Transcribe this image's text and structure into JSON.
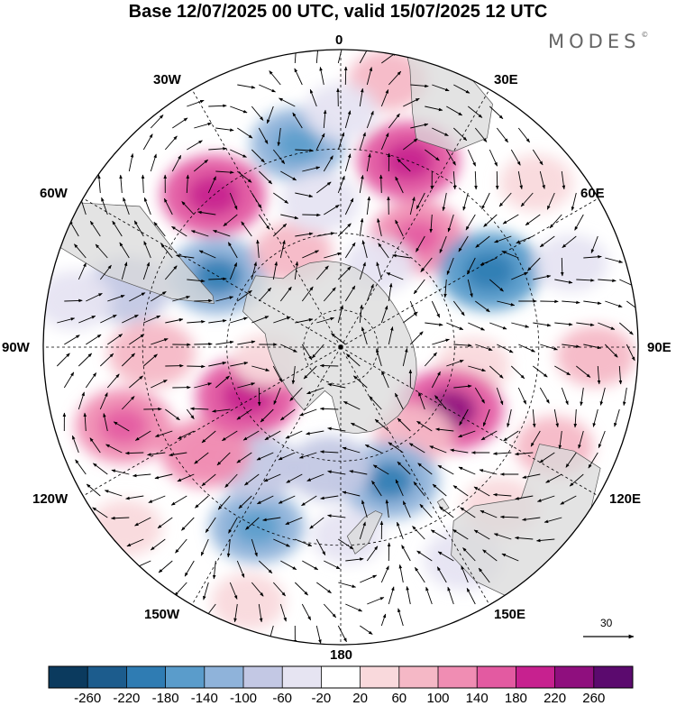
{
  "title": "Base 12/07/2025 00 UTC, valid 15/07/2025 12 UTC",
  "brand": "MODES",
  "brand_mark": "©",
  "meridian_labels": {
    "m0": "0",
    "m30e": "30E",
    "m60e": "60E",
    "m90e": "90E",
    "m120e": "120E",
    "m150e": "150E",
    "m180": "180",
    "m150w": "150W",
    "m120w": "120W",
    "m90w": "90W",
    "m60w": "60W",
    "m30w": "30W"
  },
  "reference_vector": {
    "label": "30"
  },
  "colorbar": {
    "ticks": [
      "-260",
      "-220",
      "-180",
      "-140",
      "-100",
      "-60",
      "-20",
      "20",
      "60",
      "100",
      "140",
      "180",
      "220",
      "260"
    ],
    "colors": [
      "#0b3a5e",
      "#1c5c8d",
      "#2f7cb3",
      "#5a9ccb",
      "#8fb3da",
      "#c3c8e4",
      "#e6e4f2",
      "#ffffff",
      "#f9d9dc",
      "#f5b8c6",
      "#f08db3",
      "#e35aa1",
      "#c7218f",
      "#8f0f7e",
      "#5b0a6e"
    ]
  },
  "colors": {
    "land": "#d9d9d9",
    "grid": "#000000",
    "coast": "#555555"
  },
  "anomalies": [
    {
      "lon": 205,
      "lat": -40,
      "v": -120
    },
    {
      "lon": 215,
      "lat": -52,
      "v": -80
    },
    {
      "lon": 232,
      "lat": -46,
      "v": 100
    },
    {
      "lon": 250,
      "lat": -33,
      "v": 130
    },
    {
      "lon": 242,
      "lat": -62,
      "v": 150
    },
    {
      "lon": 260,
      "lat": -70,
      "v": 20
    },
    {
      "lon": 300,
      "lat": -53,
      "v": -140
    },
    {
      "lon": 285,
      "lat": -35,
      "v": -90
    },
    {
      "lon": 268,
      "lat": -42,
      "v": 90
    },
    {
      "lon": 320,
      "lat": -40,
      "v": 160
    },
    {
      "lon": 333,
      "lat": -62,
      "v": 60
    },
    {
      "lon": 348,
      "lat": -38,
      "v": -120
    },
    {
      "lon": 352,
      "lat": -52,
      "v": -60
    },
    {
      "lon": 20,
      "lat": -40,
      "v": 150
    },
    {
      "lon": 35,
      "lat": -55,
      "v": 120
    },
    {
      "lon": 25,
      "lat": -66,
      "v": -30
    },
    {
      "lon": 63,
      "lat": -47,
      "v": -150
    },
    {
      "lon": 70,
      "lat": -30,
      "v": -40
    },
    {
      "lon": 92,
      "lat": -28,
      "v": 60
    },
    {
      "lon": 98,
      "lat": -55,
      "v": 40
    },
    {
      "lon": 120,
      "lat": -57,
      "v": 170
    },
    {
      "lon": 140,
      "lat": -60,
      "v": 60
    },
    {
      "lon": 160,
      "lat": -53,
      "v": -140
    },
    {
      "lon": 185,
      "lat": -58,
      "v": -80
    },
    {
      "lon": 135,
      "lat": -34,
      "v": 50
    },
    {
      "lon": 150,
      "lat": -30,
      "v": -60
    },
    {
      "lon": 178,
      "lat": -42,
      "v": -30
    },
    {
      "lon": 200,
      "lat": -25,
      "v": 40
    },
    {
      "lon": 115,
      "lat": -32,
      "v": 60
    },
    {
      "lon": 50,
      "lat": -28,
      "v": 40
    },
    {
      "lon": 10,
      "lat": -25,
      "v": 60
    },
    {
      "lon": 230,
      "lat": -23,
      "v": 40
    },
    {
      "lon": 280,
      "lat": -25,
      "v": -50
    },
    {
      "lon": 0,
      "lat": -32,
      "v": -40
    }
  ]
}
